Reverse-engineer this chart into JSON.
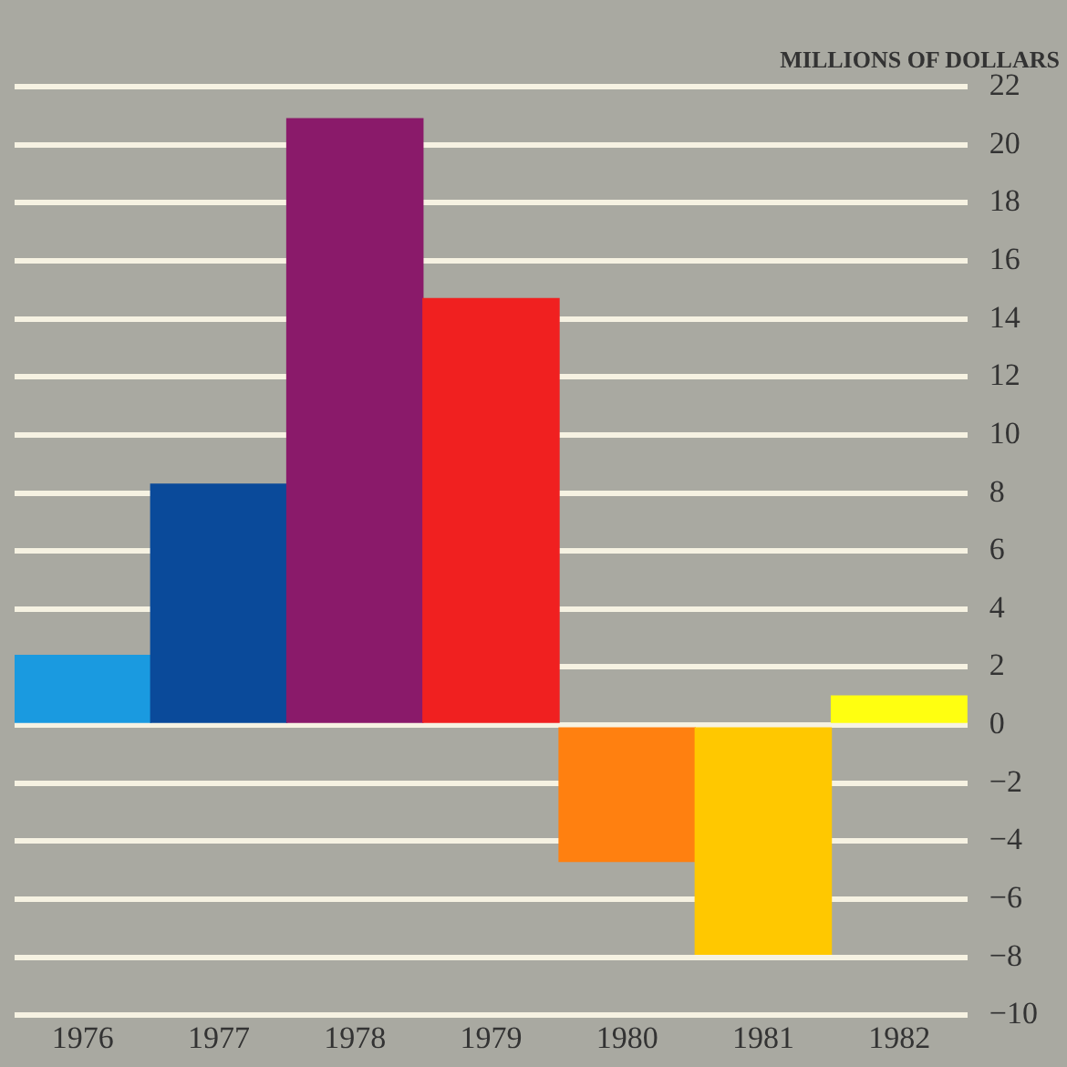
{
  "chart_data": {
    "type": "bar",
    "ylabel": "MILLIONS OF DOLLARS",
    "categories": [
      "1976",
      "1977",
      "1978",
      "1979",
      "1980",
      "1981",
      "1982"
    ],
    "values": [
      2.4,
      8.3,
      20.9,
      14.7,
      -4.7,
      -7.9,
      1.0
    ],
    "colors": [
      "#1a9ae0",
      "#0a4a9a",
      "#8a1a6a",
      "#f02020",
      "#ff8010",
      "#ffc800",
      "#ffff10"
    ],
    "ylim": [
      -10,
      22
    ],
    "yticks": [
      {
        "value": -10,
        "label": "−10"
      },
      {
        "value": -8,
        "label": "−8"
      },
      {
        "value": -6,
        "label": "−6"
      },
      {
        "value": -4,
        "label": "−4"
      },
      {
        "value": -2,
        "label": "−2"
      },
      0,
      2,
      4,
      6,
      8,
      10,
      12,
      14,
      16,
      18,
      20,
      22
    ],
    "grid": "y",
    "legend": false
  }
}
